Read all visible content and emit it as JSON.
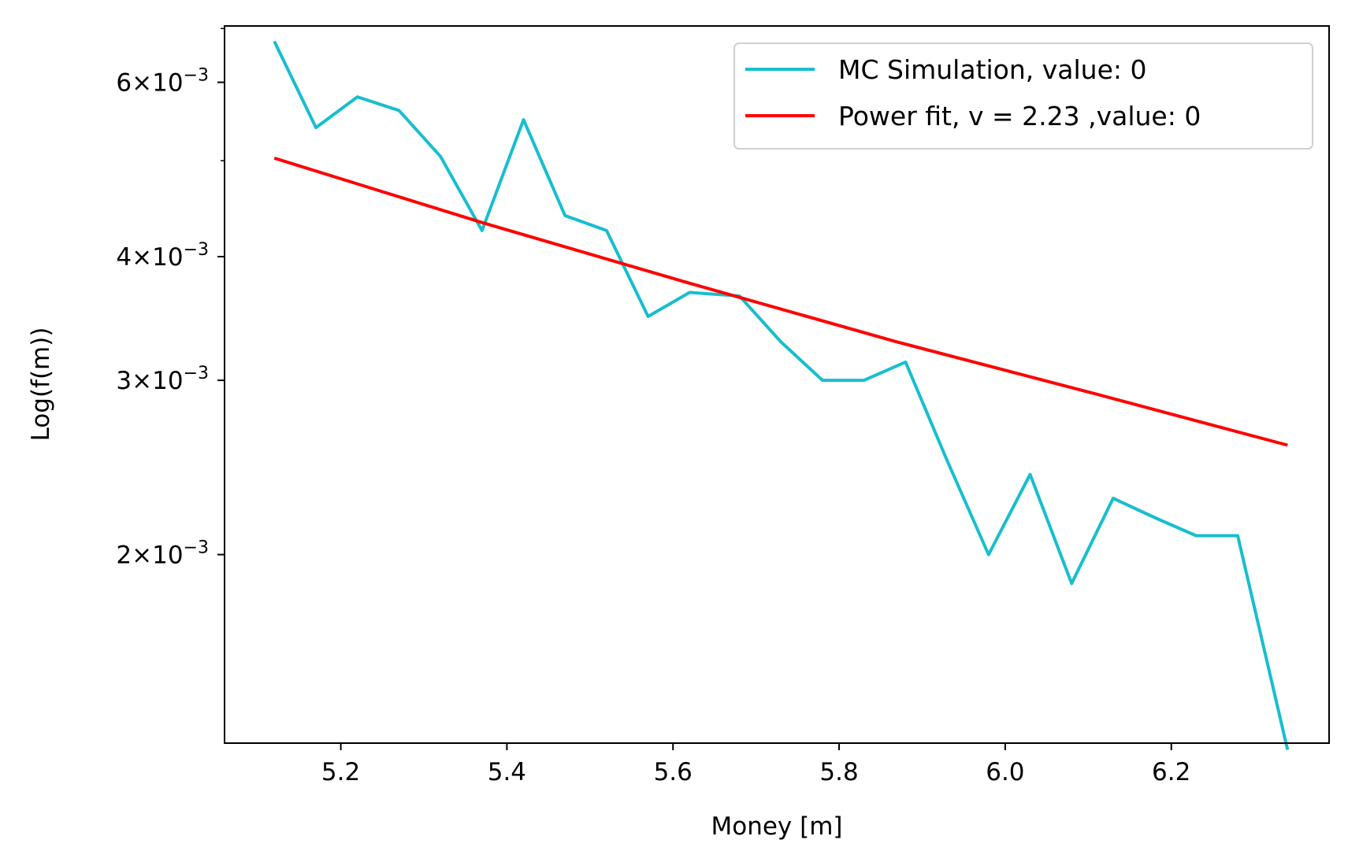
{
  "chart_data": {
    "type": "line",
    "title": "",
    "xlabel": "Money [m]",
    "ylabel": "Log(f(m))",
    "y_scale": "log",
    "xlim": [
      5.06,
      6.39
    ],
    "ylim": [
      0.00129,
      0.00684
    ],
    "grid": false,
    "legend_position": "top-right",
    "x_ticks": [
      {
        "value": 5.2,
        "label": "5.2"
      },
      {
        "value": 5.4,
        "label": "5.4"
      },
      {
        "value": 5.6,
        "label": "5.6"
      },
      {
        "value": 5.8,
        "label": "5.8"
      },
      {
        "value": 6.0,
        "label": "6.0"
      },
      {
        "value": 6.2,
        "label": "6.2"
      }
    ],
    "y_major_ticks": [
      {
        "value": 0.002,
        "mantissa": "2",
        "exponent": "−3"
      },
      {
        "value": 0.003,
        "mantissa": "3",
        "exponent": "−3"
      },
      {
        "value": 0.004,
        "mantissa": "4",
        "exponent": "−3"
      },
      {
        "value": 0.006,
        "mantissa": "6",
        "exponent": "−3"
      }
    ],
    "y_minor_ticks": [
      0.005,
      0.0068
    ],
    "series": [
      {
        "name": "MC Simulation, value: 0",
        "color": "#17becf",
        "x": [
          5.12,
          5.17,
          5.22,
          5.27,
          5.32,
          5.37,
          5.42,
          5.47,
          5.52,
          5.57,
          5.62,
          5.68,
          5.73,
          5.78,
          5.83,
          5.88,
          5.93,
          5.98,
          6.03,
          6.08,
          6.13,
          6.18,
          6.23,
          6.28,
          6.34
        ],
        "values": [
          0.0066,
          0.0054,
          0.0058,
          0.00562,
          0.00505,
          0.00425,
          0.0055,
          0.0044,
          0.00425,
          0.00348,
          0.00368,
          0.00365,
          0.00328,
          0.003,
          0.003,
          0.00313,
          0.00249,
          0.002,
          0.00241,
          0.00187,
          0.00228,
          0.00218,
          0.00209,
          0.00209,
          0.00127
        ]
      },
      {
        "name": "Power fit, v = 2.23 ,value: 0",
        "color": "#ff0000",
        "x": [
          5.12,
          5.37,
          5.62,
          5.87,
          6.12,
          6.34
        ],
        "values": [
          0.00503,
          0.00433,
          0.00376,
          0.00328,
          0.00289,
          0.00258
        ]
      }
    ]
  }
}
